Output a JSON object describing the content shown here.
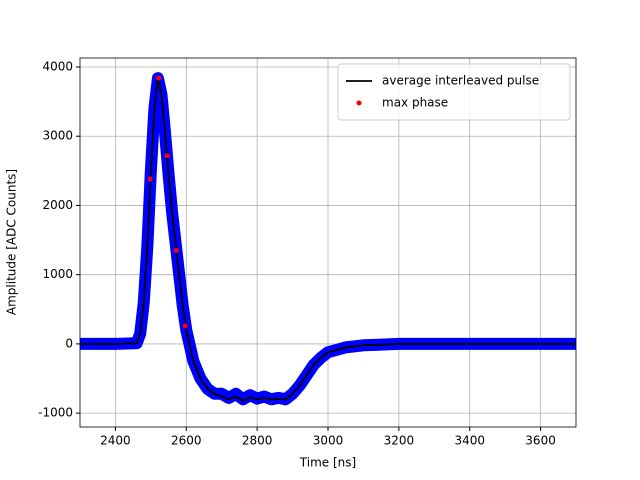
{
  "chart_data": {
    "type": "line",
    "xlabel": "Time [ns]",
    "ylabel": "Amplitude [ADC Counts]",
    "xlim": [
      2300,
      3700
    ],
    "xticks": [
      2400,
      2600,
      2800,
      3000,
      3200,
      3400,
      3600
    ],
    "ylim": [
      -1200,
      4130
    ],
    "yticks": [
      -1000,
      0,
      1000,
      2000,
      3000,
      4000
    ],
    "grid": true,
    "legend": "upper right",
    "series": [
      {
        "color": "#0000ff",
        "mode": "line",
        "linewidth": 12,
        "x": [
          2300,
          2400,
          2460,
          2470,
          2480,
          2490,
          2500,
          2510,
          2520,
          2530,
          2540,
          2550,
          2560,
          2570,
          2580,
          2590,
          2600,
          2620,
          2640,
          2660,
          2680,
          2700,
          2720,
          2740,
          2760,
          2780,
          2800,
          2820,
          2840,
          2860,
          2880,
          2900,
          2920,
          2940,
          2960,
          2980,
          3000,
          3050,
          3100,
          3200,
          3400,
          3700
        ],
        "values": [
          0,
          0,
          10,
          150,
          600,
          1400,
          2500,
          3400,
          3840,
          3600,
          3050,
          2450,
          1900,
          1450,
          1000,
          550,
          200,
          -250,
          -500,
          -650,
          -720,
          -720,
          -780,
          -720,
          -800,
          -740,
          -790,
          -760,
          -800,
          -780,
          -800,
          -720,
          -600,
          -450,
          -300,
          -200,
          -120,
          -50,
          -20,
          0,
          0,
          0
        ]
      },
      {
        "name": "average interleaved pulse",
        "color": "#000000",
        "mode": "line",
        "linewidth": 1.8,
        "x": [
          2300,
          2400,
          2460,
          2470,
          2480,
          2490,
          2500,
          2510,
          2520,
          2530,
          2540,
          2550,
          2560,
          2570,
          2580,
          2590,
          2600,
          2620,
          2640,
          2660,
          2680,
          2700,
          2720,
          2740,
          2760,
          2780,
          2800,
          2820,
          2840,
          2860,
          2880,
          2900,
          2920,
          2940,
          2960,
          2980,
          3000,
          3050,
          3100,
          3200,
          3400,
          3700
        ],
        "values": [
          0,
          0,
          10,
          150,
          600,
          1400,
          2500,
          3400,
          3840,
          3600,
          3050,
          2450,
          1900,
          1450,
          1000,
          550,
          200,
          -250,
          -500,
          -650,
          -720,
          -760,
          -800,
          -760,
          -820,
          -770,
          -800,
          -780,
          -800,
          -790,
          -800,
          -720,
          -600,
          -450,
          -300,
          -200,
          -120,
          -50,
          -20,
          0,
          0,
          0
        ]
      },
      {
        "name": "max phase",
        "color": "#ff0000",
        "mode": "markers",
        "x": [
          2498,
          2522,
          2546,
          2572,
          2597
        ],
        "values": [
          2380,
          3840,
          2720,
          1350,
          260
        ]
      }
    ]
  }
}
